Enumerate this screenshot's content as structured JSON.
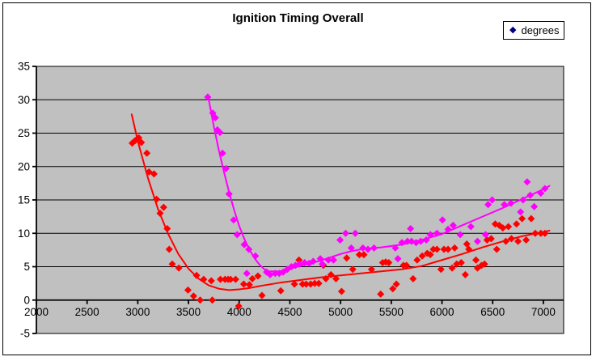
{
  "title": "Ignition Timing Overall",
  "legend": {
    "label": "degrees",
    "marker": "diamond",
    "marker_color": "#000080",
    "position": "top-right"
  },
  "colors": {
    "series_red": "#FF0000",
    "series_magenta": "#FF00FF",
    "legend_marker": "#000080",
    "plot_background": "#C0C0C0",
    "gridline": "#000000",
    "axis": "#000000",
    "text": "#000000",
    "chart_border": "#000000",
    "background": "#FFFFFF"
  },
  "chart_data": {
    "type": "scatter",
    "title": "Ignition Timing Overall",
    "xlabel": "",
    "ylabel": "",
    "legend_entries": [
      "degrees"
    ],
    "legend_position": "top-right",
    "grid": "horizontal",
    "plot_bg": "#C0C0C0",
    "xlim": [
      2000,
      7200
    ],
    "ylim": [
      -5,
      35
    ],
    "x_ticks": [
      2000,
      2500,
      3000,
      3500,
      4000,
      4500,
      5000,
      5500,
      6000,
      6500,
      7000
    ],
    "y_ticks": [
      -5,
      0,
      5,
      10,
      15,
      20,
      25,
      30,
      35
    ],
    "marker": "diamond",
    "series": [
      {
        "name": "degrees-red",
        "color": "#FF0000",
        "points": [
          [
            2945,
            23.5
          ],
          [
            2975,
            23.9
          ],
          [
            3010,
            24.3
          ],
          [
            3035,
            23.6
          ],
          [
            3090,
            22.0
          ],
          [
            3110,
            19.2
          ],
          [
            3160,
            18.9
          ],
          [
            3185,
            15.1
          ],
          [
            3220,
            13.0
          ],
          [
            3255,
            13.9
          ],
          [
            3290,
            10.7
          ],
          [
            3310,
            7.6
          ],
          [
            3340,
            5.4
          ],
          [
            3405,
            4.8
          ],
          [
            3495,
            1.5
          ],
          [
            3550,
            0.6
          ],
          [
            3580,
            3.7
          ],
          [
            3615,
            0.0
          ],
          [
            3650,
            3.1
          ],
          [
            3725,
            2.9
          ],
          [
            3735,
            0.0
          ],
          [
            3815,
            3.1
          ],
          [
            3860,
            3.1
          ],
          [
            3890,
            3.1
          ],
          [
            3915,
            3.1
          ],
          [
            3965,
            3.1
          ],
          [
            3995,
            -0.9
          ],
          [
            4045,
            2.4
          ],
          [
            4100,
            2.3
          ],
          [
            4130,
            3.2
          ],
          [
            4185,
            3.6
          ],
          [
            4225,
            0.7
          ],
          [
            4410,
            1.4
          ],
          [
            4545,
            2.4
          ],
          [
            4590,
            6.0
          ],
          [
            4625,
            2.4
          ],
          [
            4660,
            2.4
          ],
          [
            4705,
            2.4
          ],
          [
            4745,
            2.5
          ],
          [
            4785,
            2.5
          ],
          [
            4830,
            5.2
          ],
          [
            4855,
            3.2
          ],
          [
            4905,
            3.8
          ],
          [
            4955,
            3.2
          ],
          [
            5010,
            1.3
          ],
          [
            5060,
            6.3
          ],
          [
            5120,
            4.6
          ],
          [
            5185,
            6.8
          ],
          [
            5230,
            6.8
          ],
          [
            5305,
            4.6
          ],
          [
            5395,
            0.9
          ],
          [
            5415,
            5.6
          ],
          [
            5445,
            5.7
          ],
          [
            5475,
            5.6
          ],
          [
            5515,
            1.7
          ],
          [
            5550,
            2.4
          ],
          [
            5620,
            5.2
          ],
          [
            5650,
            5.2
          ],
          [
            5715,
            3.2
          ],
          [
            5755,
            6.0
          ],
          [
            5805,
            6.6
          ],
          [
            5855,
            7.0
          ],
          [
            5885,
            6.8
          ],
          [
            5915,
            7.6
          ],
          [
            5950,
            7.6
          ],
          [
            5990,
            4.6
          ],
          [
            6020,
            7.6
          ],
          [
            6060,
            7.6
          ],
          [
            6100,
            4.8
          ],
          [
            6125,
            7.8
          ],
          [
            6145,
            5.4
          ],
          [
            6190,
            5.6
          ],
          [
            6230,
            3.8
          ],
          [
            6245,
            8.4
          ],
          [
            6265,
            7.6
          ],
          [
            6335,
            6.0
          ],
          [
            6350,
            4.8
          ],
          [
            6390,
            5.2
          ],
          [
            6420,
            5.4
          ],
          [
            6445,
            9.0
          ],
          [
            6485,
            9.2
          ],
          [
            6525,
            11.4
          ],
          [
            6540,
            7.6
          ],
          [
            6565,
            11.2
          ],
          [
            6600,
            10.8
          ],
          [
            6630,
            8.8
          ],
          [
            6655,
            11.0
          ],
          [
            6685,
            9.2
          ],
          [
            6735,
            11.4
          ],
          [
            6750,
            8.8
          ],
          [
            6790,
            12.2
          ],
          [
            6830,
            9.0
          ],
          [
            6880,
            12.2
          ],
          [
            6920,
            10.0
          ],
          [
            6975,
            10.0
          ],
          [
            7015,
            10.0
          ]
        ]
      },
      {
        "name": "degrees-magenta",
        "color": "#FF00FF",
        "points": [
          [
            3690,
            30.4
          ],
          [
            3740,
            28.0
          ],
          [
            3765,
            27.3
          ],
          [
            3785,
            25.5
          ],
          [
            3810,
            25.1
          ],
          [
            3835,
            22.0
          ],
          [
            3870,
            19.7
          ],
          [
            3900,
            15.9
          ],
          [
            3945,
            12.0
          ],
          [
            3980,
            9.8
          ],
          [
            4050,
            8.3
          ],
          [
            4075,
            4.0
          ],
          [
            4095,
            7.6
          ],
          [
            4160,
            6.6
          ],
          [
            4270,
            4.2
          ],
          [
            4305,
            3.8
          ],
          [
            4355,
            4.0
          ],
          [
            4395,
            4.0
          ],
          [
            4435,
            4.2
          ],
          [
            4475,
            4.6
          ],
          [
            4515,
            5.0
          ],
          [
            4555,
            5.2
          ],
          [
            4595,
            5.4
          ],
          [
            4645,
            5.6
          ],
          [
            4690,
            5.5
          ],
          [
            4730,
            5.8
          ],
          [
            4800,
            6.2
          ],
          [
            4820,
            5.4
          ],
          [
            4880,
            6.0
          ],
          [
            4930,
            6.0
          ],
          [
            4995,
            9.0
          ],
          [
            5050,
            10.0
          ],
          [
            5105,
            7.8
          ],
          [
            5145,
            10.0
          ],
          [
            5220,
            7.8
          ],
          [
            5270,
            7.6
          ],
          [
            5330,
            7.8
          ],
          [
            5540,
            7.8
          ],
          [
            5565,
            6.2
          ],
          [
            5605,
            8.6
          ],
          [
            5660,
            8.8
          ],
          [
            5690,
            10.7
          ],
          [
            5700,
            8.8
          ],
          [
            5745,
            8.6
          ],
          [
            5790,
            8.8
          ],
          [
            5845,
            9.0
          ],
          [
            5885,
            9.8
          ],
          [
            5950,
            10.0
          ],
          [
            6005,
            12.0
          ],
          [
            6060,
            10.6
          ],
          [
            6110,
            11.2
          ],
          [
            6180,
            9.8
          ],
          [
            6285,
            11.0
          ],
          [
            6350,
            8.8
          ],
          [
            6430,
            9.8
          ],
          [
            6455,
            14.3
          ],
          [
            6495,
            15.0
          ],
          [
            6615,
            14.3
          ],
          [
            6680,
            14.5
          ],
          [
            6775,
            13.2
          ],
          [
            6800,
            15.0
          ],
          [
            6840,
            17.7
          ],
          [
            6870,
            15.7
          ],
          [
            6910,
            14.0
          ],
          [
            6975,
            16.0
          ],
          [
            7015,
            16.7
          ]
        ]
      }
    ],
    "trendlines": [
      {
        "name": "trend-red",
        "color": "#FF0000",
        "points": [
          [
            2940,
            27.8
          ],
          [
            3000,
            23.8
          ],
          [
            3100,
            18.3
          ],
          [
            3200,
            13.6
          ],
          [
            3300,
            9.9
          ],
          [
            3400,
            6.9
          ],
          [
            3500,
            4.7
          ],
          [
            3600,
            3.2
          ],
          [
            3700,
            2.2
          ],
          [
            3800,
            1.7
          ],
          [
            3900,
            1.5
          ],
          [
            4000,
            1.6
          ],
          [
            4100,
            1.8
          ],
          [
            4200,
            2.1
          ],
          [
            4400,
            2.6
          ],
          [
            4600,
            3.0
          ],
          [
            4800,
            3.4
          ],
          [
            5000,
            3.7
          ],
          [
            5200,
            4.0
          ],
          [
            5400,
            4.3
          ],
          [
            5600,
            4.6
          ],
          [
            5800,
            5.1
          ],
          [
            6000,
            6.0
          ],
          [
            6200,
            6.9
          ],
          [
            6400,
            7.9
          ],
          [
            6600,
            8.8
          ],
          [
            6800,
            9.6
          ],
          [
            7000,
            10.2
          ],
          [
            7060,
            10.4
          ]
        ]
      },
      {
        "name": "trend-magenta",
        "color": "#FF00FF",
        "points": [
          [
            3690,
            30.8
          ],
          [
            3750,
            26.0
          ],
          [
            3800,
            22.4
          ],
          [
            3850,
            19.2
          ],
          [
            3900,
            16.2
          ],
          [
            3950,
            13.5
          ],
          [
            4000,
            11.1
          ],
          [
            4050,
            9.2
          ],
          [
            4100,
            7.6
          ],
          [
            4150,
            6.3
          ],
          [
            4200,
            5.3
          ],
          [
            4250,
            4.6
          ],
          [
            4300,
            4.3
          ],
          [
            4400,
            4.3
          ],
          [
            4500,
            4.7
          ],
          [
            4600,
            5.1
          ],
          [
            4700,
            5.5
          ],
          [
            4800,
            5.9
          ],
          [
            4900,
            6.4
          ],
          [
            5000,
            6.9
          ],
          [
            5100,
            7.3
          ],
          [
            5200,
            7.6
          ],
          [
            5400,
            7.9
          ],
          [
            5600,
            8.3
          ],
          [
            5800,
            9.0
          ],
          [
            6000,
            9.9
          ],
          [
            6200,
            11.2
          ],
          [
            6400,
            12.5
          ],
          [
            6600,
            13.8
          ],
          [
            6800,
            15.2
          ],
          [
            7000,
            16.6
          ],
          [
            7060,
            17.1
          ]
        ]
      }
    ]
  }
}
